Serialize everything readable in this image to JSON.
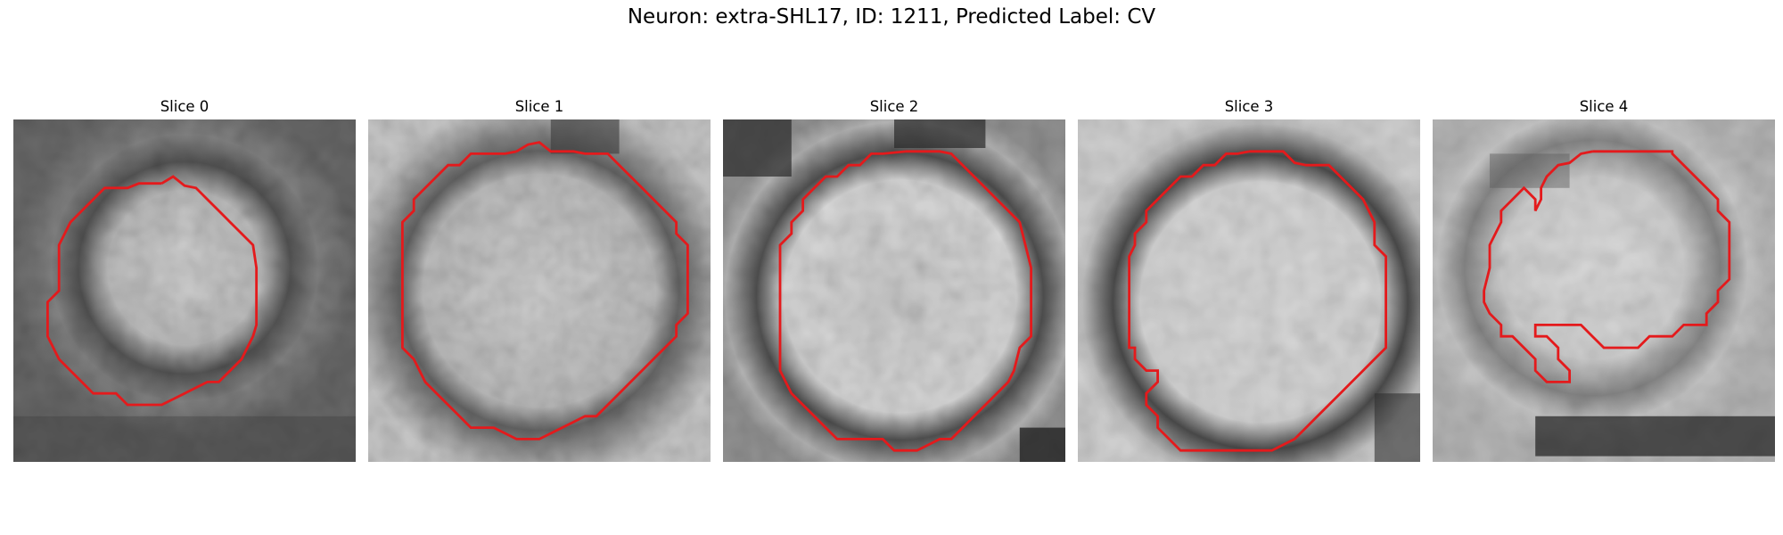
{
  "figure": {
    "title": "Neuron: extra-SHL17, ID: 1211, Predicted Label: CV",
    "contour_color": "#e41a1c",
    "colormap": "grayscale"
  },
  "slices": [
    {
      "label": "Slice 0"
    },
    {
      "label": "Slice 1"
    },
    {
      "label": "Slice 2"
    },
    {
      "label": "Slice 3"
    },
    {
      "label": "Slice 4"
    }
  ]
}
